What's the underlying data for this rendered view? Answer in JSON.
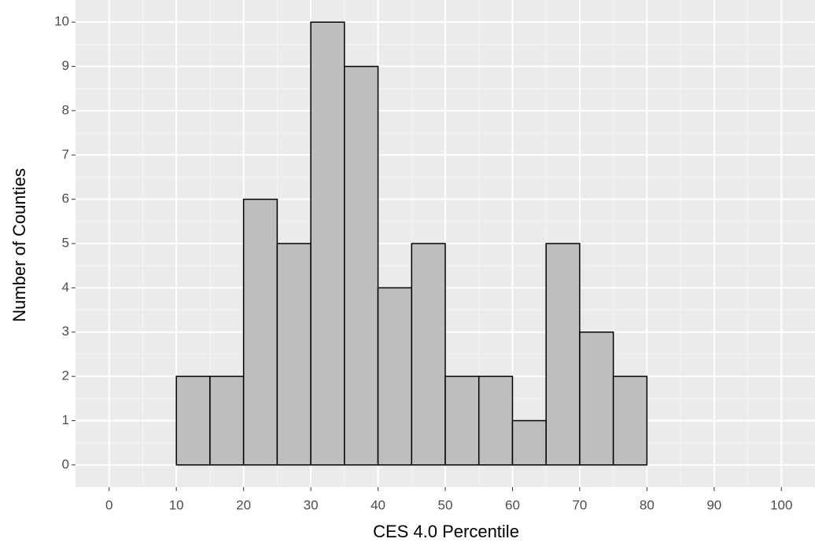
{
  "chart_data": {
    "type": "histogram",
    "x_label": "CES 4.0 Percentile",
    "y_label": "Number of Counties",
    "bins": [
      0,
      5,
      10,
      15,
      20,
      25,
      30,
      35,
      40,
      45,
      50,
      55,
      60,
      65,
      70,
      75,
      80,
      85,
      90,
      95,
      100
    ],
    "counts": [
      0,
      0,
      2,
      2,
      6,
      5,
      10,
      9,
      4,
      5,
      2,
      2,
      1,
      5,
      3,
      2,
      0,
      0,
      0,
      0
    ],
    "color": "#bebebe",
    "xlim": [
      -5,
      105
    ],
    "ylim": [
      -0.5,
      10.5
    ],
    "xticks": [
      0,
      10,
      20,
      30,
      40,
      50,
      60,
      70,
      80,
      90,
      100
    ],
    "yticks": [
      0,
      1,
      2,
      3,
      4,
      5,
      6,
      7,
      8,
      9,
      10
    ],
    "grid": true
  }
}
